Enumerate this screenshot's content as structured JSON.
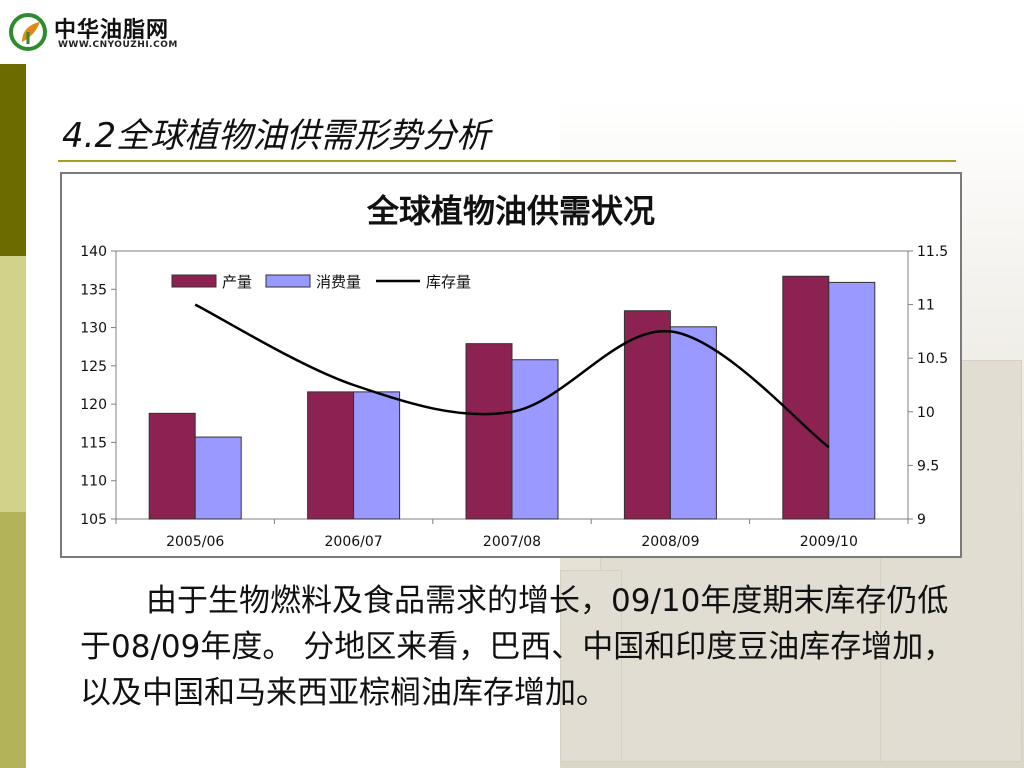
{
  "logo": {
    "name_cn": "中华油脂网",
    "name_en": "WWW.CNYOUZHI.COM"
  },
  "slide": {
    "title": "4.2全球植物油供需形势分析"
  },
  "chart_data": {
    "type": "bar+line",
    "title": "全球植物油供需状况",
    "categories": [
      "2005/06",
      "2006/07",
      "2007/08",
      "2008/09",
      "2009/10"
    ],
    "series": [
      {
        "name": "产量",
        "type": "bar",
        "axis": "left",
        "color": "#8b2252",
        "values": [
          118.8,
          121.6,
          127.9,
          132.2,
          136.7
        ]
      },
      {
        "name": "消费量",
        "type": "bar",
        "axis": "left",
        "color": "#9999ff",
        "values": [
          115.7,
          121.6,
          125.8,
          130.1,
          135.9
        ]
      },
      {
        "name": "库存量",
        "type": "line",
        "axis": "right",
        "color": "#000000",
        "values": [
          11.0,
          10.25,
          10.0,
          10.75,
          9.67
        ]
      }
    ],
    "left_axis": {
      "ylim": [
        105,
        140
      ],
      "ticks": [
        "105",
        "110",
        "115",
        "120",
        "125",
        "130",
        "135",
        "140"
      ]
    },
    "right_axis": {
      "ylim": [
        9,
        11.5
      ],
      "ticks": [
        "9",
        "9.5",
        "10",
        "10.5",
        "11",
        "11.5"
      ]
    },
    "legend_position": "top-left",
    "grid": false
  },
  "paragraph": "由于生物燃料及食品需求的增长，09/10年度期末库存仍低于08/09年度。 分地区来看，巴西、中国和印度豆油库存增加，以及中国和马来西亚棕榈油库存增加。"
}
